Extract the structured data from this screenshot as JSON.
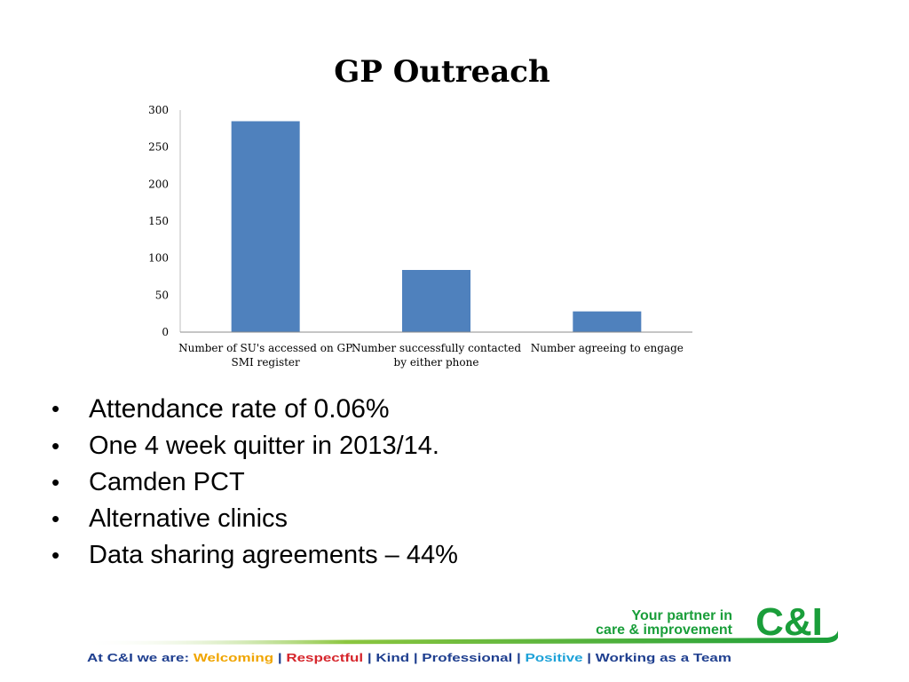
{
  "chart_data": {
    "type": "bar",
    "title": "GP  Outreach",
    "categories": [
      [
        "Number of SU's accessed  on GP",
        "SMI register"
      ],
      [
        "Number successfully contacted",
        "by either phone"
      ],
      [
        "Number agreeing to engage"
      ]
    ],
    "values": [
      285,
      84,
      28
    ],
    "ylim": [
      0,
      300
    ],
    "yticks": [
      0,
      50,
      100,
      150,
      200,
      250,
      300
    ],
    "xlabel": "",
    "ylabel": "",
    "grid": false,
    "legend": "none",
    "bar_color": "#4f81bd"
  },
  "bullets": [
    " Attendance rate of 0.06%",
    " One 4 week quitter in 2013/14.",
    "Camden PCT",
    "Alternative clinics",
    "Data sharing agreements – 44%"
  ],
  "footer": {
    "tagline_line1": "Your partner in",
    "tagline_line2": "care & improvement",
    "logo_text": "C&I",
    "values_prefix": "At C&I we are:",
    "values": [
      "Welcoming",
      "Respectful",
      "Kind",
      "Professional",
      "Positive",
      "Working as a Team"
    ],
    "values_colors": [
      "#f0a500",
      "#d6262c",
      "#1f3f8f",
      "#1f3f8f",
      "#1ea2d8",
      "#1f3f8f"
    ],
    "brand_green": "#1a9e3a",
    "navy": "#1f3f8f"
  }
}
